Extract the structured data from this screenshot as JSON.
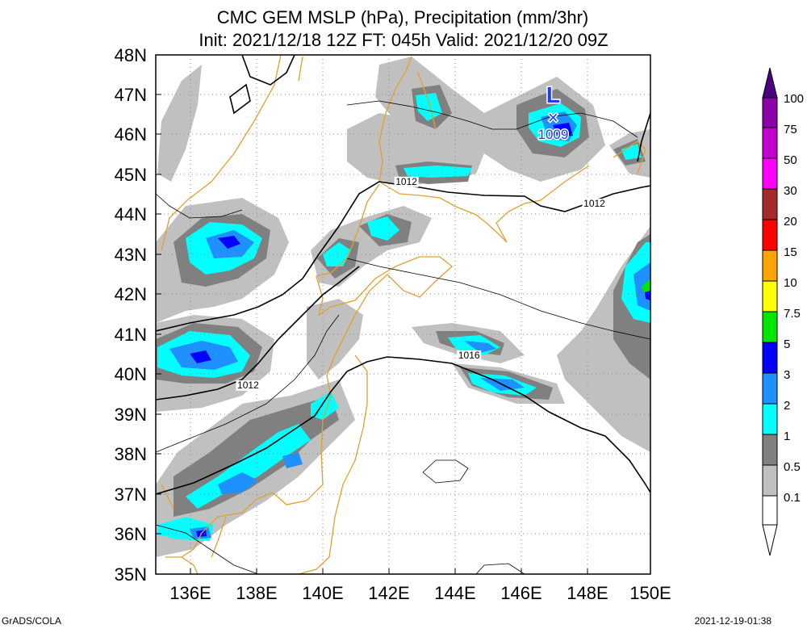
{
  "title_line1": "CMC GEM MSLP (hPa), Precipitation (mm/3hr)",
  "title_line2": "Init: 2021/12/18 12Z  FT: 045h  Valid: 2021/12/20 09Z",
  "footer_left": "GrADS/COLA",
  "footer_right": "2021-12-19-01:38",
  "lat_labels": [
    "48N",
    "47N",
    "46N",
    "45N",
    "44N",
    "43N",
    "42N",
    "41N",
    "40N",
    "39N",
    "38N",
    "37N",
    "36N",
    "35N"
  ],
  "lon_labels": [
    "136E",
    "138E",
    "140E",
    "142E",
    "144E",
    "146E",
    "148E",
    "150E"
  ],
  "isobar_labels": [
    {
      "text": "1012",
      "lon": 142.6,
      "lat": 44.75
    },
    {
      "text": "1012",
      "lon": 148.3,
      "lat": 44.2
    },
    {
      "text": "1016",
      "lon": 144.5,
      "lat": 40.4
    },
    {
      "text": "1012",
      "lon": 137.8,
      "lat": 39.65
    }
  ],
  "low_center": {
    "symbol": "L",
    "marker": "×",
    "pressure": "1009",
    "lon": 147.05,
    "lat": 46.4,
    "color": "#1a3cff"
  },
  "colorbar": {
    "labels": [
      "100",
      "75",
      "50",
      "30",
      "20",
      "15",
      "10",
      "7.5",
      "5",
      "3",
      "2",
      "1",
      "0.5",
      "0.1"
    ],
    "colors": [
      "#4b0082",
      "#8b00a8",
      "#c400d0",
      "#ff00ff",
      "#a52a2a",
      "#ff0000",
      "#ffa500",
      "#ffff00",
      "#00e600",
      "#0000ff",
      "#1e90ff",
      "#00ffff",
      "#808080",
      "#c0c0c0",
      "#ffffff"
    ]
  },
  "colors": {
    "coast": "#e0a030",
    "grid": "#8a8a8a",
    "isobar": "#000000"
  }
}
